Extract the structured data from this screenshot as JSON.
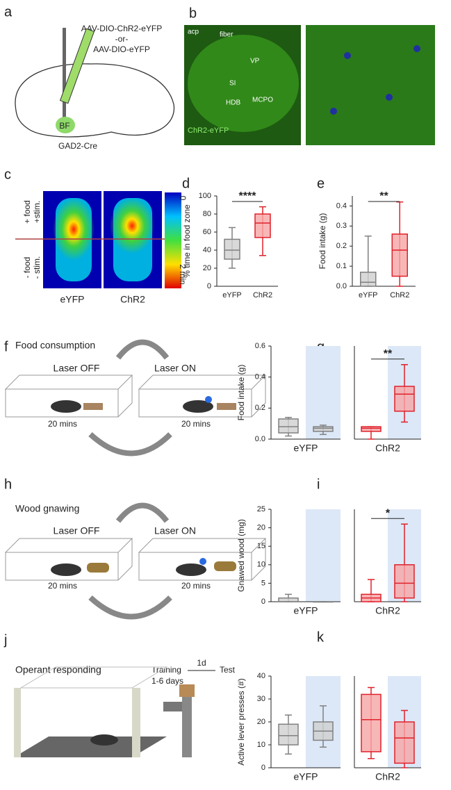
{
  "panels": {
    "a": {
      "label": "a",
      "virus_1": "AAV-DIO-ChR2-eYFP",
      "or": "-or-",
      "virus_2": "AAV-DIO-eYFP",
      "region": "BF",
      "mouse": "GAD2-Cre"
    },
    "b": {
      "label": "b",
      "regions": [
        "acp",
        "fiber",
        "VP",
        "SI",
        "HDB",
        "MCPO"
      ],
      "stain": "ChR2-eYFP"
    },
    "c": {
      "label": "c",
      "zone_top": [
        "+ food",
        "+stim."
      ],
      "zone_bottom": [
        "- food",
        "- stim."
      ],
      "scale_min": "0",
      "scale_max": "2 min",
      "groups": [
        "eYFP",
        "ChR2"
      ]
    },
    "d": {
      "label": "d"
    },
    "e": {
      "label": "e"
    },
    "f": {
      "label": "f",
      "title": "Food consumption",
      "off": "Laser OFF",
      "on": "Laser ON",
      "duration": "20 mins"
    },
    "g": {
      "label": "g"
    },
    "h": {
      "label": "h",
      "title": "Wood gnawing",
      "off": "Laser OFF",
      "on": "Laser ON",
      "duration": "20 mins"
    },
    "i": {
      "label": "i"
    },
    "j": {
      "label": "j",
      "title": "Operant responding",
      "training": "Training",
      "days": "1-6 days",
      "gap": "1d",
      "test": "Test"
    },
    "k": {
      "label": "k"
    }
  },
  "chart_data": [
    {
      "type": "box",
      "ylabel": "% time in food zone",
      "ylim": [
        0,
        100
      ],
      "yticks": [
        0,
        20,
        40,
        60,
        80,
        100
      ],
      "series": [
        {
          "name": "eYFP",
          "color": "#808080",
          "fill": "#cfcfcf",
          "boxes": [
            {
              "min": 20,
              "q1": 30,
              "median": 40,
              "q3": 52,
              "max": 65
            }
          ]
        },
        {
          "name": "ChR2",
          "color": "#e0202a",
          "fill": "#f6a5a5",
          "boxes": [
            {
              "min": 34,
              "q1": 54,
              "median": 70,
              "q3": 80,
              "max": 88
            }
          ]
        }
      ],
      "significance": "****"
    },
    {
      "type": "box",
      "ylabel": "Food intake (g)",
      "ylim": [
        0,
        0.45
      ],
      "yticks": [
        {
          "value": 0,
          "label": "0.0"
        },
        0.1,
        0.2,
        0.3,
        0.4
      ],
      "series": [
        {
          "name": "eYFP",
          "color": "#808080",
          "fill": "#cfcfcf",
          "boxes": [
            {
              "min": 0,
              "q1": 0,
              "median": 0.02,
              "q3": 0.07,
              "max": 0.25
            }
          ]
        },
        {
          "name": "ChR2",
          "color": "#e0202a",
          "fill": "#f6a5a5",
          "boxes": [
            {
              "min": 0,
              "q1": 0.05,
              "median": 0.18,
              "q3": 0.26,
              "max": 0.42
            }
          ]
        }
      ],
      "significance": "**"
    },
    {
      "type": "box",
      "ylabel": "Food intake (g)",
      "ylim": [
        0,
        0.6
      ],
      "yticks": [
        {
          "value": 0,
          "label": "0.0"
        },
        0.2,
        0.4,
        0.6
      ],
      "shaded": [
        false,
        true
      ],
      "series": [
        {
          "name": "eYFP",
          "color": "#808080",
          "fill": "#cfcfcf",
          "boxes": [
            {
              "min": 0.02,
              "q1": 0.04,
              "median": 0.08,
              "q3": 0.13,
              "max": 0.14
            },
            {
              "min": 0.03,
              "q1": 0.05,
              "median": 0.07,
              "q3": 0.08,
              "max": 0.09
            }
          ]
        },
        {
          "name": "ChR2",
          "color": "#e0202a",
          "fill": "#f6a5a5",
          "boxes": [
            {
              "min": 0,
              "q1": 0.05,
              "median": 0.07,
              "q3": 0.08,
              "max": 0.08
            },
            {
              "min": 0.11,
              "q1": 0.18,
              "median": 0.29,
              "q3": 0.34,
              "max": 0.48
            }
          ]
        }
      ],
      "significance": "**"
    },
    {
      "type": "box",
      "ylabel": "Gnawed wood (mg)",
      "ylim": [
        0,
        25
      ],
      "yticks": [
        0,
        5,
        10,
        15,
        20,
        25
      ],
      "shaded": [
        false,
        true
      ],
      "series": [
        {
          "name": "eYFP",
          "color": "#808080",
          "fill": "#cfcfcf",
          "boxes": [
            {
              "min": 0,
              "q1": 0,
              "median": 0,
              "q3": 1,
              "max": 2
            },
            {
              "min": 0,
              "q1": 0,
              "median": 0,
              "q3": 0,
              "max": 0
            }
          ]
        },
        {
          "name": "ChR2",
          "color": "#e0202a",
          "fill": "#f6a5a5",
          "boxes": [
            {
              "min": 0,
              "q1": 0,
              "median": 1,
              "q3": 2,
              "max": 6
            },
            {
              "min": 0,
              "q1": 1,
              "median": 5,
              "q3": 10,
              "max": 21
            }
          ]
        }
      ],
      "significance": "*"
    },
    {
      "type": "box",
      "ylabel": "Active lever presses (#)",
      "ylim": [
        0,
        40
      ],
      "yticks": [
        0,
        10,
        20,
        30,
        40
      ],
      "shaded": [
        false,
        true
      ],
      "series": [
        {
          "name": "eYFP",
          "color": "#808080",
          "fill": "#cfcfcf",
          "boxes": [
            {
              "min": 6,
              "q1": 10,
              "median": 14,
              "q3": 19,
              "max": 23
            },
            {
              "min": 9,
              "q1": 12,
              "median": 16,
              "q3": 20,
              "max": 27
            }
          ]
        },
        {
          "name": "ChR2",
          "color": "#e0202a",
          "fill": "#f6a5a5",
          "boxes": [
            {
              "min": 4,
              "q1": 7,
              "median": 21,
              "q3": 32,
              "max": 35
            },
            {
              "min": 0,
              "q1": 2,
              "median": 13,
              "q3": 20,
              "max": 25
            }
          ]
        }
      ]
    }
  ]
}
